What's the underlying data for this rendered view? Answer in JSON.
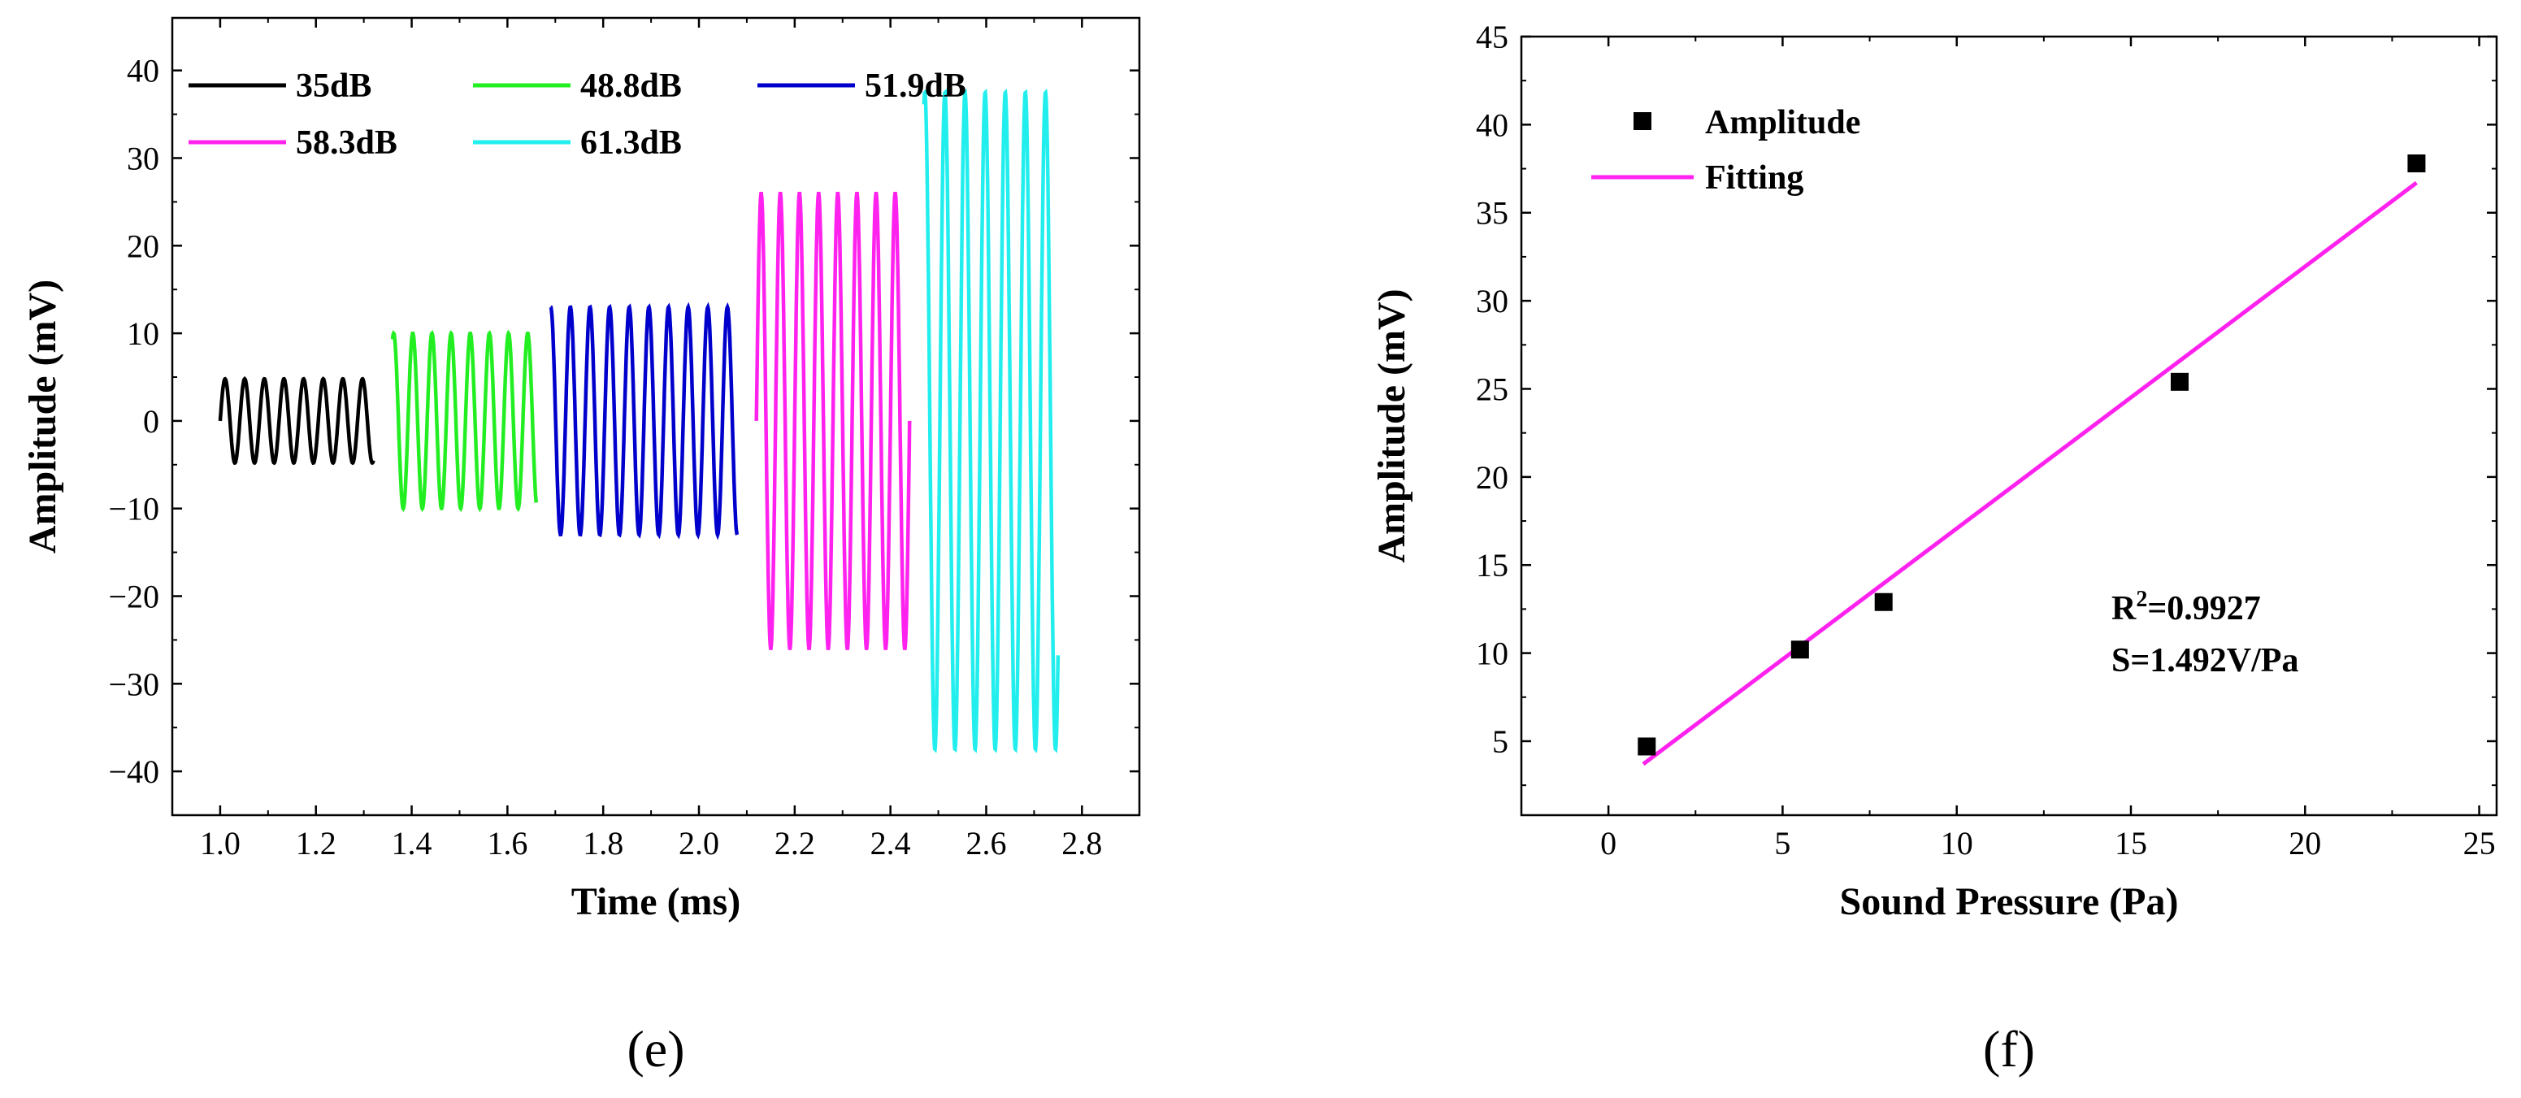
{
  "chart_data": [
    {
      "type": "line",
      "panel_label": "(e)",
      "xlabel": "Time (ms)",
      "ylabel": "Amplitude (mV)",
      "xlim": [
        0.9,
        2.92
      ],
      "ylim": [
        -45,
        46
      ],
      "xticks": [
        1.0,
        1.2,
        1.4,
        1.6,
        1.8,
        2.0,
        2.2,
        2.4,
        2.6,
        2.8
      ],
      "xtick_labels": [
        "1.0",
        "1.2",
        "1.4",
        "1.6",
        "1.8",
        "2.0",
        "2.2",
        "2.4",
        "2.6",
        "2.8"
      ],
      "yticks": [
        -40,
        -30,
        -20,
        -10,
        0,
        10,
        20,
        30,
        40
      ],
      "ytick_labels": [
        "−40",
        "−30",
        "−20",
        "−10",
        "0",
        "10",
        "20",
        "30",
        "40"
      ],
      "legend_position": "top-left",
      "series": [
        {
          "name": "35dB",
          "color": "#000000",
          "t_start": 1.0,
          "t_end": 1.32,
          "amplitude": 4.8,
          "period": 0.041,
          "phase": 0.0
        },
        {
          "name": "48.8dB",
          "color": "#22ee22",
          "t_start": 1.36,
          "t_end": 1.66,
          "amplitude": 10.0,
          "period": 0.04,
          "phase": 1.2
        },
        {
          "name": "51.9dB",
          "color": "#0000cc",
          "t_start": 1.69,
          "t_end": 2.08,
          "amplitude": 13.0,
          "period": 0.041,
          "phase": 1.5
        },
        {
          "name": "58.3dB",
          "color": "#ff22ee",
          "t_start": 2.12,
          "t_end": 2.44,
          "amplitude": 26.0,
          "period": 0.04,
          "phase": 0.0
        },
        {
          "name": "61.3dB",
          "color": "#22eeee",
          "t_start": 2.47,
          "t_end": 2.75,
          "amplitude": 37.5,
          "period": 0.042,
          "phase": 1.3
        }
      ]
    },
    {
      "type": "scatter",
      "panel_label": "(f)",
      "xlabel": "Sound Pressure (Pa)",
      "ylabel": "Amplitude (mV)",
      "xlim": [
        -2.5,
        25.5
      ],
      "ylim": [
        0.8,
        45
      ],
      "xticks": [
        0,
        5,
        10,
        15,
        20,
        25
      ],
      "xtick_labels": [
        "0",
        "5",
        "10",
        "15",
        "20",
        "25"
      ],
      "yticks": [
        5,
        10,
        15,
        20,
        25,
        30,
        35,
        40,
        45
      ],
      "ytick_labels": [
        "5",
        "10",
        "15",
        "20",
        "25",
        "30",
        "35",
        "40",
        "45"
      ],
      "legend_position": "top-left",
      "points": {
        "name": "Amplitude",
        "color": "#000000",
        "x": [
          1.1,
          5.5,
          7.9,
          16.4,
          23.2
        ],
        "y": [
          4.7,
          10.2,
          12.9,
          25.4,
          37.8
        ]
      },
      "fit": {
        "name": "Fitting",
        "color": "#ff22ee",
        "x": [
          1.0,
          23.2
        ],
        "y": [
          3.7,
          36.7
        ]
      },
      "annotations": {
        "r2_label": "R",
        "r2_sup": "2",
        "r2_value": "=0.9927",
        "sensitivity": "S=1.492V/Pa"
      }
    }
  ]
}
